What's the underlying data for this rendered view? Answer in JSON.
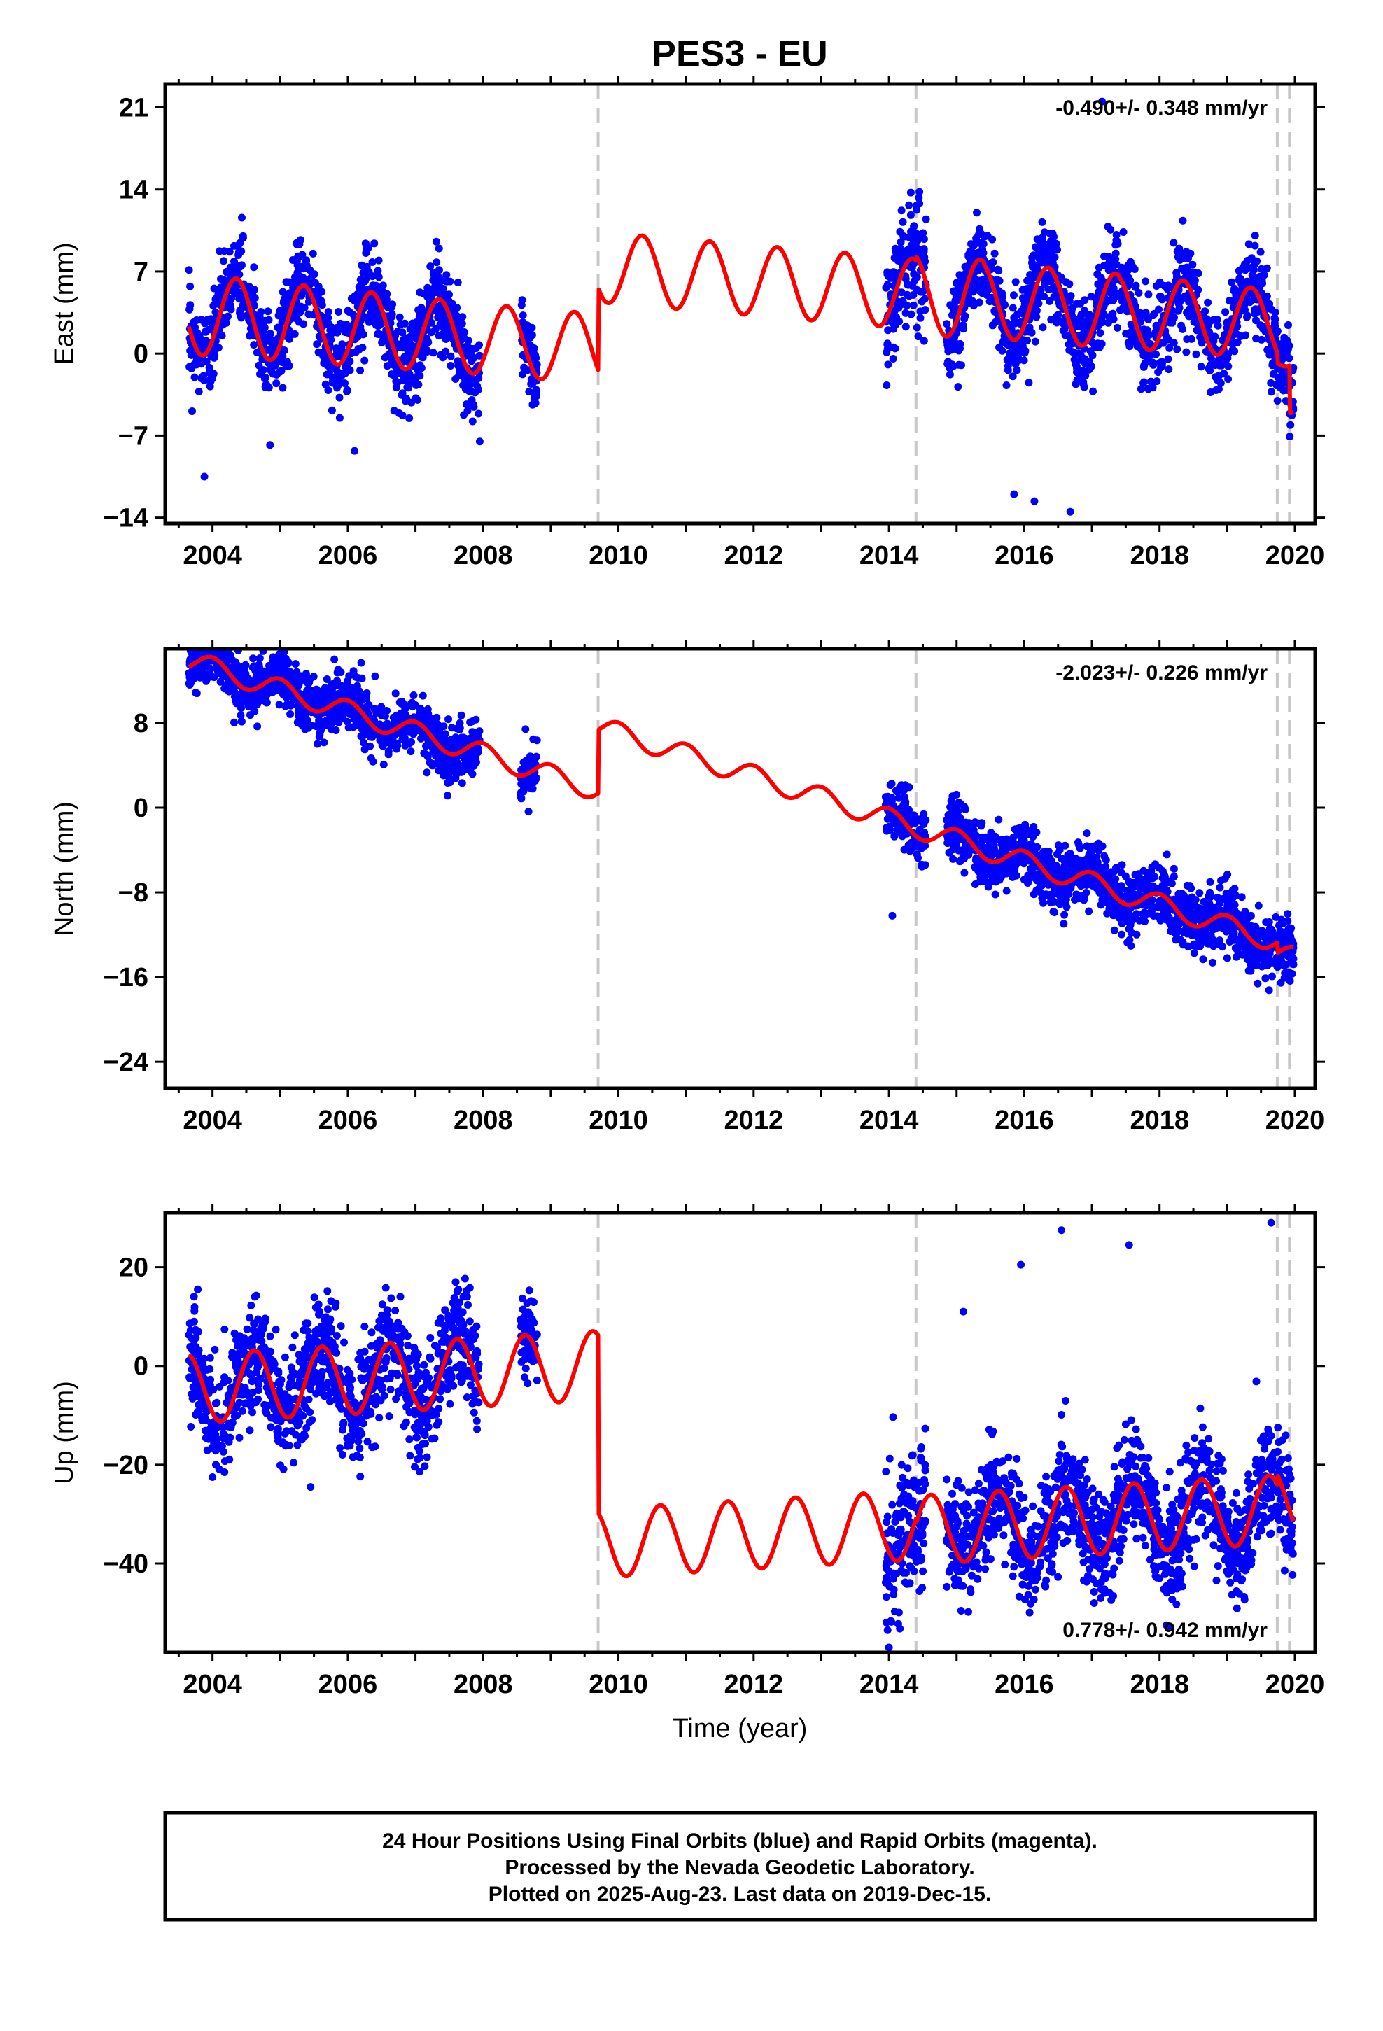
{
  "chart_data": {
    "type": "scatter",
    "title": "PES3 - EU",
    "xlabel": "Time (year)",
    "xlim": [
      2003.3,
      2020.3
    ],
    "xticks": [
      2004,
      2006,
      2008,
      2010,
      2012,
      2014,
      2016,
      2018,
      2020
    ],
    "event_lines": [
      2009.7,
      2014.4,
      2019.74,
      2019.92
    ],
    "colors": {
      "data": "#0000ff",
      "model": "#ff0000",
      "event": "#c8c8c8",
      "frame": "#000000"
    },
    "panels": [
      {
        "id": "east",
        "ylabel": "East (mm)",
        "ylim": [
          -14.5,
          23
        ],
        "yticks": [
          21,
          14,
          7,
          0,
          -7,
          -14
        ],
        "rate": "-0.490+/- 0.348 mm/yr",
        "rate_position": "top-right",
        "model": {
          "offset": -0.5,
          "rate": -0.49,
          "t0": 2011.5,
          "phase": 2004.35,
          "segments": [
            {
              "from": 2003.65,
              "to": 2009.7,
              "jump": 0,
              "amp": [
                3.4,
                3.3,
                3.2,
                3.1,
                3.0,
                3.0,
                3.0,
                3.0,
                3.0,
                3.0
              ]
            },
            {
              "from": 2009.7,
              "to": 2014.4,
              "jump": 7.0,
              "amp": [
                3.0
              ]
            },
            {
              "from": 2014.4,
              "to": 2019.74,
              "jump": 0,
              "amp": [
                3.4,
                3.2,
                3.2,
                3.1,
                3.0,
                3.0,
                3.0,
                3.0,
                3.0,
                3.0,
                3.0
              ]
            },
            {
              "from": 2019.74,
              "to": 2019.92,
              "jump": -2.5,
              "amp": [
                1.0
              ]
            },
            {
              "from": 2019.92,
              "to": 2019.98,
              "jump": -4.5,
              "amp": [
                0.5
              ]
            }
          ]
        },
        "data_coverage": [
          [
            2003.65,
            2007.95,
            1.8
          ],
          [
            2008.55,
            2008.8,
            1.5
          ],
          [
            2013.95,
            2014.55,
            2.5
          ],
          [
            2014.85,
            2019.98,
            1.8
          ]
        ],
        "outliers": [
          [
            2003.88,
            -10.5
          ],
          [
            2016.15,
            -12.6
          ],
          [
            2016.68,
            -13.5
          ],
          [
            2017.15,
            21.5
          ],
          [
            2014.45,
            13.8
          ],
          [
            2014.45,
            12.8
          ],
          [
            2015.85,
            -12.0
          ],
          [
            2004.85,
            -7.8
          ],
          [
            2006.1,
            -8.3
          ],
          [
            2007.95,
            -7.5
          ]
        ]
      },
      {
        "id": "north",
        "ylabel": "North (mm)",
        "ylim": [
          -26.5,
          15
        ],
        "yticks": [
          8,
          0,
          -8,
          -16,
          -24
        ],
        "rate": "-2.023+/- 0.226 mm/yr",
        "rate_position": "top-right",
        "model": {
          "offset": -2.0,
          "rate": -2.023,
          "t0": 2011.5,
          "phase": 2004.0,
          "segments": [
            {
              "from": 2003.65,
              "to": 2009.7,
              "jump": 0,
              "amp": [
                1.0
              ]
            },
            {
              "from": 2009.7,
              "to": 2014.4,
              "jump": 6.0,
              "amp": [
                1.0
              ]
            },
            {
              "from": 2014.4,
              "to": 2019.74,
              "jump": 0,
              "amp": [
                1.0
              ]
            },
            {
              "from": 2019.74,
              "to": 2019.98,
              "jump": -1.0,
              "amp": [
                1.0
              ]
            }
          ]
        },
        "data_coverage": [
          [
            2003.65,
            2007.95,
            1.3
          ],
          [
            2008.55,
            2008.8,
            1.3
          ],
          [
            2013.95,
            2014.55,
            1.6
          ],
          [
            2014.85,
            2019.98,
            1.4
          ]
        ],
        "outliers": [
          [
            2004.1,
            13.2
          ],
          [
            2005.0,
            14.0
          ],
          [
            2005.8,
            14.0
          ],
          [
            2014.05,
            -10.2
          ],
          [
            2016.55,
            -4.8
          ],
          [
            2019.0,
            -14.2
          ]
        ]
      },
      {
        "id": "up",
        "ylabel": "Up (mm)",
        "ylim": [
          -58,
          31
        ],
        "yticks": [
          20,
          0,
          -20,
          -40
        ],
        "rate": "0.778+/- 0.942 mm/yr",
        "rate_position": "bottom-right",
        "model": {
          "offset": 1.5,
          "rate": 0.778,
          "t0": 2011.5,
          "phase": 2004.62,
          "segments": [
            {
              "from": 2003.65,
              "to": 2009.7,
              "jump": 0,
              "amp": [
                7.0
              ]
            },
            {
              "from": 2009.7,
              "to": 2014.4,
              "jump": -36.0,
              "amp": [
                7.0
              ]
            },
            {
              "from": 2014.4,
              "to": 2019.74,
              "jump": -1.0,
              "amp": [
                7.0
              ]
            },
            {
              "from": 2019.74,
              "to": 2019.98,
              "jump": 2.0,
              "amp": [
                7.0
              ]
            }
          ]
        },
        "data_coverage": [
          [
            2003.65,
            2007.95,
            5.5
          ],
          [
            2008.55,
            2008.8,
            4.5
          ],
          [
            2013.95,
            2014.55,
            8.0
          ],
          [
            2014.85,
            2019.98,
            5.5
          ]
        ],
        "outliers": [
          [
            2004.0,
            -22.5
          ],
          [
            2005.45,
            -24.5
          ],
          [
            2015.95,
            20.5
          ],
          [
            2016.55,
            27.5
          ],
          [
            2016.45,
            -31.0
          ],
          [
            2017.1,
            -26.0
          ],
          [
            2019.15,
            -32.0
          ],
          [
            2019.3,
            -33.5
          ],
          [
            2019.65,
            29.0
          ],
          [
            2017.55,
            24.5
          ],
          [
            2004.05,
            -20.0
          ],
          [
            2015.1,
            11.0
          ],
          [
            2014.0,
            -57.0
          ],
          [
            2013.98,
            -53.5
          ]
        ]
      }
    ]
  },
  "footer": {
    "line1": "24 Hour Positions Using Final Orbits (blue) and Rapid Orbits (magenta).",
    "line2": "Processed by the Nevada Geodetic Laboratory.",
    "line3": "Plotted on 2025-Aug-23. Last data on 2019-Dec-15."
  }
}
